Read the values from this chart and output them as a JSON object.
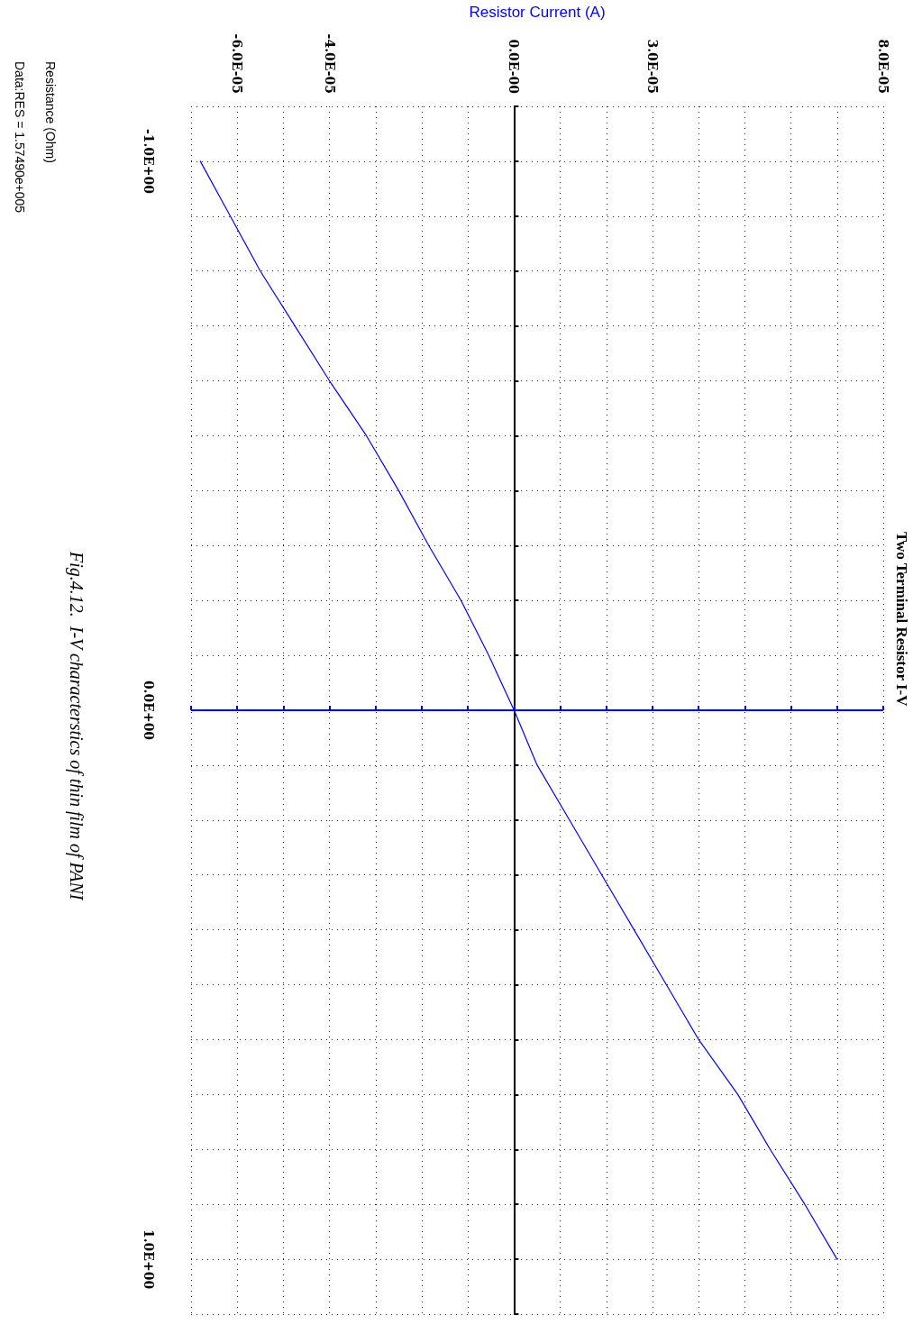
{
  "chart_data": {
    "type": "line",
    "title": "Two Terminal Resistor I-V",
    "xlabel": "Resistor Current (A)",
    "annotations": [
      "Resistance (Ohm)",
      "Data:RES = 1.57490e+005",
      "Fig.4.12.  I-V characterstics of thin film of PANI"
    ],
    "x": [
      -6.8e-05,
      -6.15e-05,
      -5.5e-05,
      -4.75e-05,
      -4e-05,
      -3.2e-05,
      -2.5e-05,
      -1.85e-05,
      -1.15e-05,
      -5.5e-06,
      0,
      5e-06,
      1.2e-05,
      1.9e-05,
      2.6e-05,
      3.3e-05,
      4e-05,
      4.85e-05,
      5.55e-05,
      6.3e-05,
      7e-05
    ],
    "series": [
      {
        "color": "#0000ff",
        "values": [
          -1.0,
          -0.9,
          -0.8,
          -0.7,
          -0.6,
          -0.5,
          -0.4,
          -0.3,
          -0.2,
          -0.1,
          0,
          0.1,
          0.2,
          0.3,
          0.4,
          0.5,
          0.6,
          0.7,
          0.8,
          0.9,
          1.0
        ]
      }
    ],
    "xlim": [
      -7e-05,
      8e-05
    ],
    "xticks": [
      {
        "value": -7e-05,
        "label": null
      },
      {
        "value": -6e-05,
        "label": "-6.0E-05"
      },
      {
        "value": -5e-05,
        "label": null
      },
      {
        "value": -4e-05,
        "label": "-4.0E-05"
      },
      {
        "value": -3e-05,
        "label": null
      },
      {
        "value": -2e-05,
        "label": null
      },
      {
        "value": -1e-05,
        "label": null
      },
      {
        "value": 0,
        "label": "0.0E-00"
      },
      {
        "value": 1e-05,
        "label": null
      },
      {
        "value": 2e-05,
        "label": null
      },
      {
        "value": 3e-05,
        "label": "3.0E-05"
      },
      {
        "value": 4e-05,
        "label": null
      },
      {
        "value": 5e-05,
        "label": null
      },
      {
        "value": 6e-05,
        "label": null
      },
      {
        "value": 7e-05,
        "label": null
      },
      {
        "value": 8e-05,
        "label": "8.0E-05"
      }
    ],
    "ylim": [
      1.1,
      -1.1
    ],
    "yticks": [
      {
        "value": -1.1,
        "label": null
      },
      {
        "value": -1.0,
        "label": "-1.0E+00"
      },
      {
        "value": -0.9,
        "label": null
      },
      {
        "value": -0.8,
        "label": null
      },
      {
        "value": -0.7,
        "label": null
      },
      {
        "value": -0.6,
        "label": null
      },
      {
        "value": -0.5,
        "label": null
      },
      {
        "value": -0.4,
        "label": null
      },
      {
        "value": -0.3,
        "label": null
      },
      {
        "value": -0.2,
        "label": null
      },
      {
        "value": -0.1,
        "label": null
      },
      {
        "value": 0,
        "label": "0.0E+00"
      },
      {
        "value": 0.1,
        "label": null
      },
      {
        "value": 0.2,
        "label": null
      },
      {
        "value": 0.3,
        "label": null
      },
      {
        "value": 0.4,
        "label": null
      },
      {
        "value": 0.5,
        "label": null
      },
      {
        "value": 0.6,
        "label": null
      },
      {
        "value": 0.7,
        "label": null
      },
      {
        "value": 0.8,
        "label": null
      },
      {
        "value": 0.9,
        "label": null
      },
      {
        "value": 1.0,
        "label": "1.0E+00"
      },
      {
        "value": 1.1,
        "label": null
      }
    ],
    "ref_lines": [
      {
        "axis": "y",
        "value": 0,
        "color": "#0000ff"
      }
    ],
    "grid": true,
    "marker": "none",
    "line_style": "solid"
  }
}
